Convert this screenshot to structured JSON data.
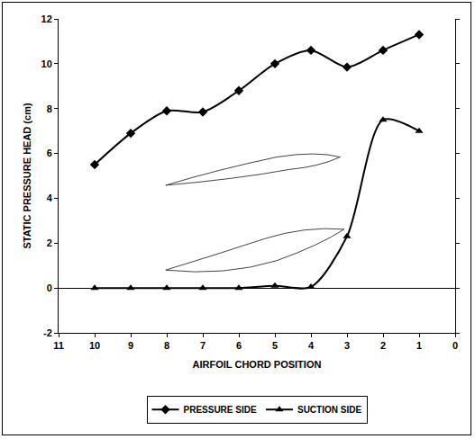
{
  "chart_data": {
    "type": "line",
    "x_label": "AIRFOIL CHORD POSITION",
    "y_label": "STATIC PRESSURE HEAD (cm)",
    "x": [
      10,
      9,
      8,
      7,
      6,
      5,
      4,
      3,
      2,
      1
    ],
    "series": [
      {
        "name": "PRESSURE SIDE",
        "color": "#000000",
        "marker": "diamond",
        "line_style": "solid",
        "values": [
          5.5,
          6.9,
          7.9,
          7.85,
          8.8,
          10.0,
          10.6,
          9.85,
          10.6,
          11.3
        ]
      },
      {
        "name": "SUCTION SIDE",
        "color": "#000000",
        "marker": "triangle-up",
        "line_style": "solid",
        "values": [
          0,
          0,
          0,
          0,
          0,
          0.1,
          0.05,
          2.3,
          7.5,
          7.0
        ]
      }
    ],
    "xlim": [
      11,
      0
    ],
    "xticks": [
      11,
      10,
      9,
      8,
      7,
      6,
      5,
      4,
      3,
      2,
      1,
      0
    ],
    "ylim": [
      -2,
      12
    ],
    "yticks": [
      -2,
      0,
      2,
      4,
      6,
      8,
      10,
      12
    ],
    "grid": false,
    "legend": "bottom"
  }
}
